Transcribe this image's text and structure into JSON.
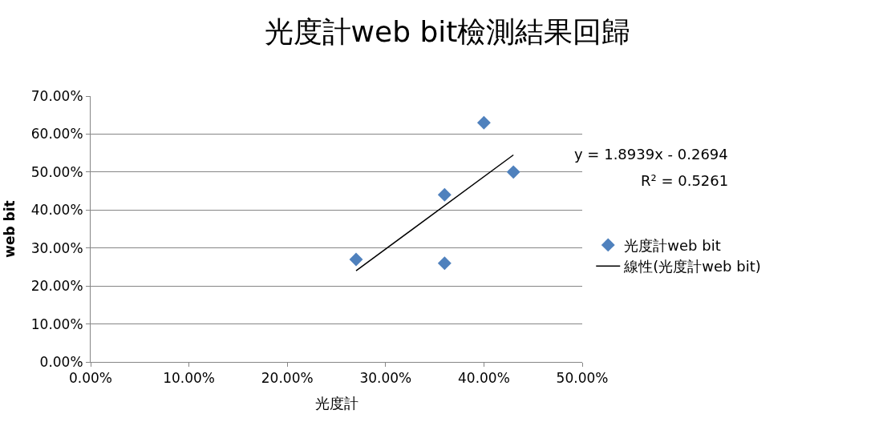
{
  "chart_data": {
    "type": "scatter",
    "title": "光度計web bit檢測結果回歸",
    "xlabel": "光度計",
    "ylabel": "web bit",
    "series": [
      {
        "name": "光度計web bit",
        "color": "#4f81bd",
        "x": [
          0.27,
          0.36,
          0.36,
          0.4,
          0.43
        ],
        "values": [
          0.27,
          0.44,
          0.26,
          0.63,
          0.5
        ],
        "marker": "diamond"
      },
      {
        "name": "線性(光度計web bit)",
        "type": "line",
        "color": "#000000",
        "x": [
          0.27,
          0.43
        ],
        "values": [
          0.24,
          0.545
        ],
        "marker": "none",
        "line_style": "solid"
      }
    ],
    "xlim": [
      0,
      0.5
    ],
    "xticks": [
      {
        "value": 0,
        "label": "0.00%"
      },
      {
        "value": 0.1,
        "label": "10.00%"
      },
      {
        "value": 0.2,
        "label": "20.00%"
      },
      {
        "value": 0.3,
        "label": "30.00%"
      },
      {
        "value": 0.4,
        "label": "40.00%"
      },
      {
        "value": 0.5,
        "label": "50.00%"
      }
    ],
    "ylim": [
      0,
      0.7
    ],
    "yticks": [
      {
        "value": 0,
        "label": "0.00%"
      },
      {
        "value": 0.1,
        "label": "10.00%"
      },
      {
        "value": 0.2,
        "label": "20.00%"
      },
      {
        "value": 0.3,
        "label": "30.00%"
      },
      {
        "value": 0.4,
        "label": "40.00%"
      },
      {
        "value": 0.5,
        "label": "50.00%"
      },
      {
        "value": 0.6,
        "label": "60.00%"
      },
      {
        "value": 0.7,
        "label": "70.00%"
      }
    ],
    "grid": "y",
    "legend": "right",
    "annotations": [
      "y = 1.8939x - 0.2694",
      "R² = 0.5261"
    ]
  }
}
